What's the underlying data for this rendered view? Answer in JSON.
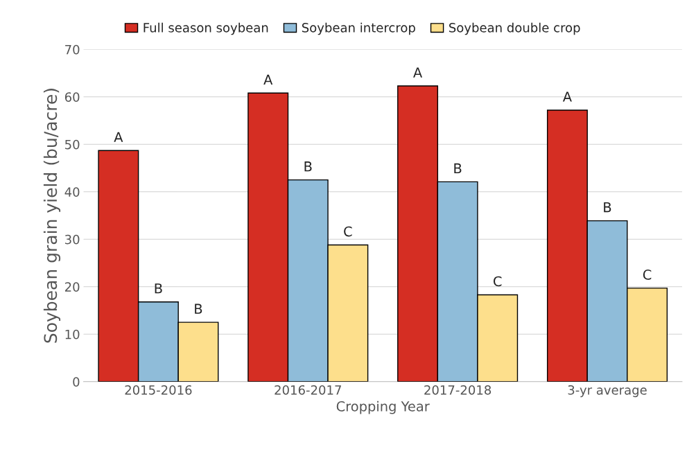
{
  "chart_data": {
    "type": "bar",
    "xlabel": "Cropping Year",
    "ylabel": "Soybean grain yield (bu/acre)",
    "categories": [
      "2015-2016",
      "2016-2017",
      "2017-2018",
      "3-yr average"
    ],
    "series": [
      {
        "name": "Full season soybean",
        "color": "#d52e23",
        "values": [
          48.7,
          60.8,
          62.3,
          57.2
        ],
        "value_labels": [
          "A",
          "A",
          "A",
          "A"
        ]
      },
      {
        "name": "Soybean intercrop",
        "color": "#8fbcd9",
        "values": [
          16.8,
          42.5,
          42.1,
          33.9
        ],
        "value_labels": [
          "B",
          "B",
          "B",
          "B"
        ]
      },
      {
        "name": "Soybean double crop",
        "color": "#fddf8c",
        "values": [
          12.5,
          28.8,
          18.3,
          19.7
        ],
        "value_labels": [
          "B",
          "C",
          "C",
          "C"
        ]
      }
    ],
    "ylim": [
      0,
      70
    ],
    "yticks": [
      0,
      10,
      20,
      30,
      40,
      50,
      60,
      70
    ],
    "grid": "y",
    "legend": "top"
  }
}
